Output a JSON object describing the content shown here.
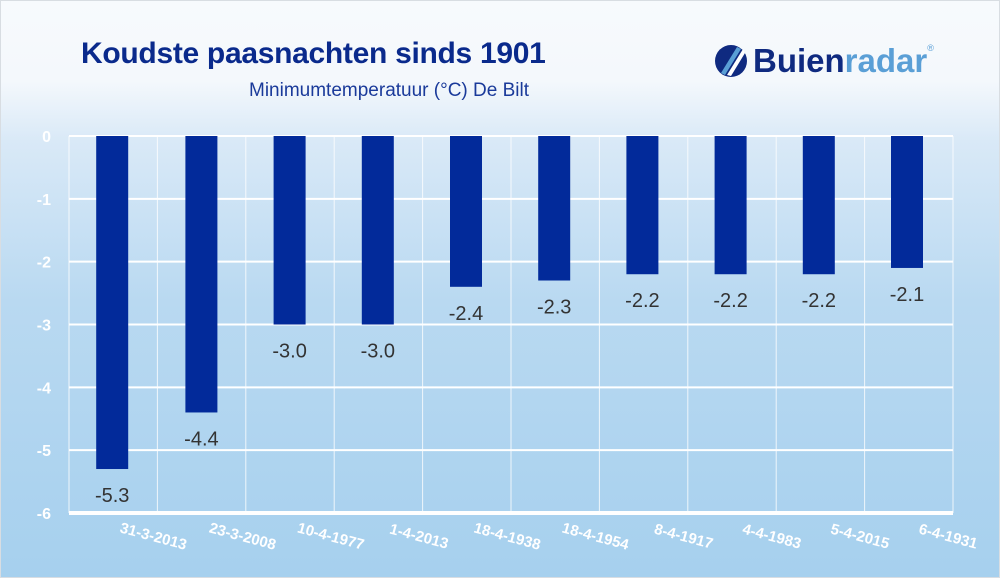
{
  "header": {
    "title": "Koudste paasnachten sinds 1901",
    "subtitle": "Minimumtemperatuur (°C) De Bilt",
    "logo_text_dark": "Buien",
    "logo_text_light": "radar",
    "logo_mark": "®"
  },
  "colors": {
    "bar": "#022a9a",
    "title": "#0a2a8c",
    "logo_light": "#5a9fd6",
    "grid": "#ffffff"
  },
  "chart_data": {
    "type": "bar",
    "title": "Koudste paasnachten sinds 1901",
    "subtitle": "Minimumtemperatuur (°C) De Bilt",
    "categories": [
      "31-3-2013",
      "23-3-2008",
      "10-4-1977",
      "1-4-2013",
      "18-4-1938",
      "18-4-1954",
      "8-4-1917",
      "4-4-1983",
      "5-4-2015",
      "6-4-1931"
    ],
    "values": [
      -5.3,
      -4.4,
      -3.0,
      -3.0,
      -2.4,
      -2.3,
      -2.2,
      -2.2,
      -2.2,
      -2.1
    ],
    "data_labels": [
      "-5.3",
      "-4.4",
      "-3.0",
      "-3.0",
      "-2.4",
      "-2.3",
      "-2.2",
      "-2.2",
      "-2.2",
      "-2.1"
    ],
    "yticks": [
      "0",
      "-1",
      "-2",
      "-3",
      "-4",
      "-5",
      "-6"
    ],
    "ylim": [
      -6,
      0
    ],
    "grid": true,
    "legend": "none"
  }
}
